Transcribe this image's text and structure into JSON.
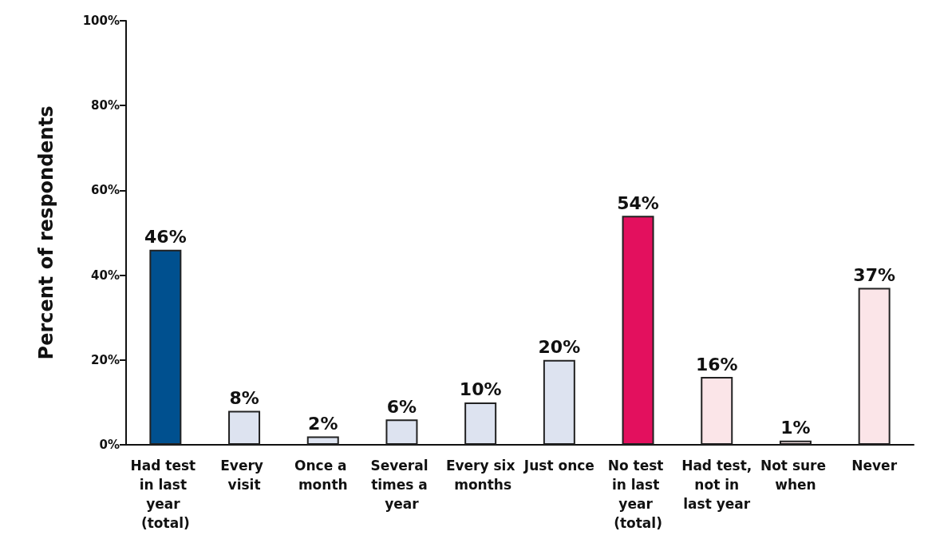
{
  "chart_data": {
    "type": "bar",
    "ylabel": "Percent of respondents",
    "categories": [
      "Had test in last year (total)",
      "Every visit",
      "Once a month",
      "Several times a year",
      "Every six months",
      "Just once",
      "No test in last year (total)",
      "Had test, not in last year",
      "Not sure when",
      "Never"
    ],
    "values": [
      46,
      8,
      2,
      6,
      10,
      20,
      54,
      16,
      1,
      37
    ],
    "colors": [
      "#00508f",
      "#dde3f0",
      "#dde3f0",
      "#dde3f0",
      "#dde3f0",
      "#dde3f0",
      "#e3105e",
      "#fbe5e8",
      "#fbe5e8",
      "#fbe5e8"
    ],
    "value_labels": [
      "46%",
      "8%",
      "2%",
      "6%",
      "10%",
      "20%",
      "54%",
      "16%",
      "1%",
      "37%"
    ],
    "ylim": [
      0,
      100
    ],
    "yticks": [
      {
        "value": 0,
        "label": "0%"
      },
      {
        "value": 20,
        "label": "20%"
      },
      {
        "value": 40,
        "label": "40%"
      },
      {
        "value": 60,
        "label": "60%"
      },
      {
        "value": 80,
        "label": "80%"
      },
      {
        "value": 100,
        "label": "100%"
      }
    ],
    "grid": false
  }
}
